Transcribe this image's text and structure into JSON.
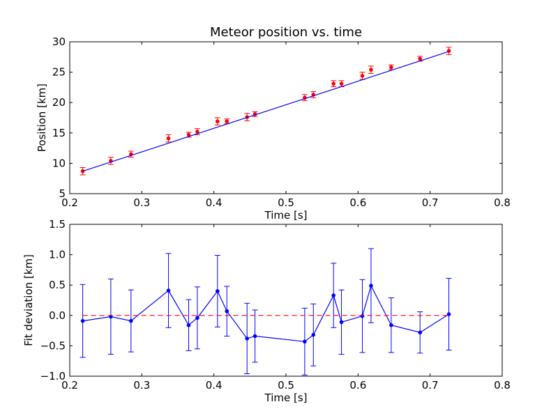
{
  "chart_data": [
    {
      "type": "scatter",
      "title": "Meteor position vs. time",
      "xlabel": "Time [s]",
      "ylabel": "Position [km]",
      "xlim": [
        0.2,
        0.8
      ],
      "ylim": [
        5,
        30
      ],
      "xticks": [
        "0.2",
        "0.3",
        "0.4",
        "0.5",
        "0.6",
        "0.7",
        "0.8"
      ],
      "yticks": [
        "5",
        "10",
        "15",
        "20",
        "25",
        "30"
      ],
      "grid": false,
      "series": [
        {
          "kind": "errorbar-points",
          "color": "#ff0000",
          "x": [
            0.218,
            0.257,
            0.285,
            0.337,
            0.365,
            0.377,
            0.405,
            0.418,
            0.446,
            0.457,
            0.526,
            0.538,
            0.566,
            0.577,
            0.606,
            0.618,
            0.646,
            0.686,
            0.726
          ],
          "y": [
            8.7,
            10.4,
            11.5,
            14.1,
            14.7,
            15.2,
            16.9,
            16.9,
            17.6,
            18.1,
            20.8,
            21.3,
            23.1,
            23.1,
            24.4,
            25.4,
            25.8,
            27.2,
            28.5
          ],
          "yerr": [
            0.6,
            0.6,
            0.5,
            0.6,
            0.4,
            0.5,
            0.6,
            0.4,
            0.6,
            0.4,
            0.5,
            0.5,
            0.5,
            0.5,
            0.6,
            0.6,
            0.4,
            0.4,
            0.6
          ]
        },
        {
          "kind": "line",
          "color": "#0000ff",
          "x": [
            0.218,
            0.726
          ],
          "y": [
            8.7,
            28.4
          ]
        }
      ]
    },
    {
      "type": "line",
      "title": "",
      "xlabel": "Time [s]",
      "ylabel": "Fit deviation [km]",
      "xlim": [
        0.2,
        0.8
      ],
      "ylim": [
        -1.0,
        1.5
      ],
      "xticks": [
        "0.2",
        "0.3",
        "0.4",
        "0.5",
        "0.6",
        "0.7",
        "0.8"
      ],
      "yticks": [
        "−1.0",
        "−0.5",
        "0.0",
        "0.5",
        "1.0",
        "1.5"
      ],
      "grid": false,
      "series": [
        {
          "kind": "errorbar-line",
          "color": "#0000ff",
          "x": [
            0.218,
            0.257,
            0.285,
            0.337,
            0.365,
            0.377,
            0.405,
            0.418,
            0.446,
            0.457,
            0.526,
            0.538,
            0.566,
            0.577,
            0.606,
            0.618,
            0.646,
            0.686,
            0.726
          ],
          "y": [
            -0.09,
            -0.02,
            -0.09,
            0.41,
            -0.16,
            -0.04,
            0.4,
            0.07,
            -0.38,
            -0.34,
            -0.43,
            -0.32,
            0.33,
            -0.11,
            -0.01,
            0.49,
            -0.16,
            -0.28,
            0.02
          ],
          "yerr": [
            0.6,
            0.62,
            0.51,
            0.61,
            0.42,
            0.51,
            0.59,
            0.41,
            0.58,
            0.43,
            0.55,
            0.51,
            0.53,
            0.53,
            0.6,
            0.61,
            0.45,
            0.34,
            0.59
          ]
        },
        {
          "kind": "reference-line",
          "color": "#ff0000",
          "style": "dashed",
          "x": [
            0.218,
            0.726
          ],
          "y": [
            0.0,
            0.0
          ]
        }
      ]
    }
  ]
}
